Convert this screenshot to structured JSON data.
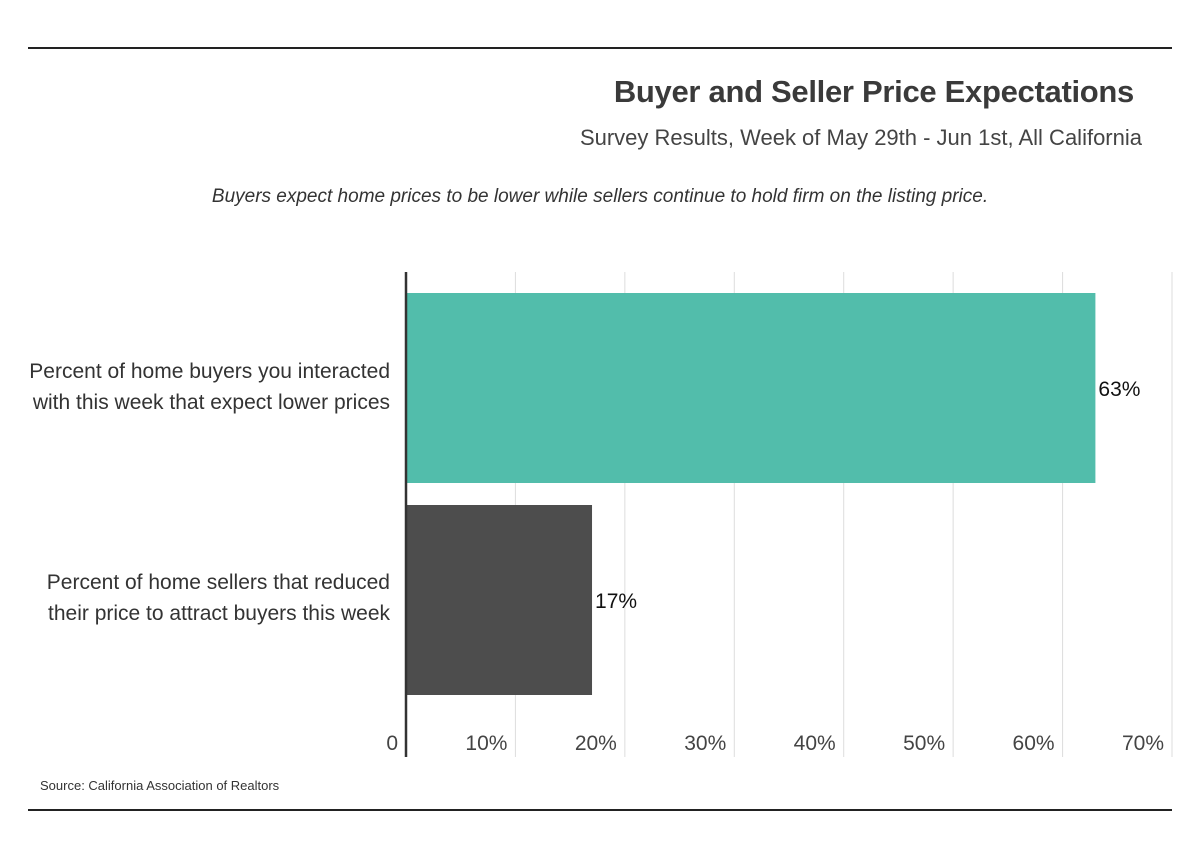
{
  "header": {
    "title": "Buyer and Seller Price Expectations",
    "subtitle": "Survey Results, Week of May 29th - Jun 1st, All California",
    "caption": "Buyers expect home prices to be lower while sellers continue to hold firm on the listing price."
  },
  "footer": {
    "source": "Source:  California Association of Realtors"
  },
  "chart_data": {
    "type": "bar",
    "orientation": "horizontal",
    "categories": [
      "Percent of home buyers you interacted with this week that expect lower prices",
      "Percent of home sellers that reduced their price to attract buyers this week"
    ],
    "category_lines": [
      [
        "Percent of home buyers you interacted",
        "with this week that expect lower prices"
      ],
      [
        "Percent of home sellers that reduced",
        "their price to attract buyers this week"
      ]
    ],
    "values": [
      63,
      17
    ],
    "value_labels": [
      "63%",
      "17%"
    ],
    "colors": [
      "#52bdab",
      "#4d4d4d"
    ],
    "xlim": [
      0,
      70
    ],
    "ticks": [
      0,
      10,
      20,
      30,
      40,
      50,
      60,
      70
    ],
    "tick_labels": [
      "0",
      "10%",
      "20%",
      "30%",
      "40%",
      "50%",
      "60%",
      "70%"
    ],
    "grid": true
  }
}
